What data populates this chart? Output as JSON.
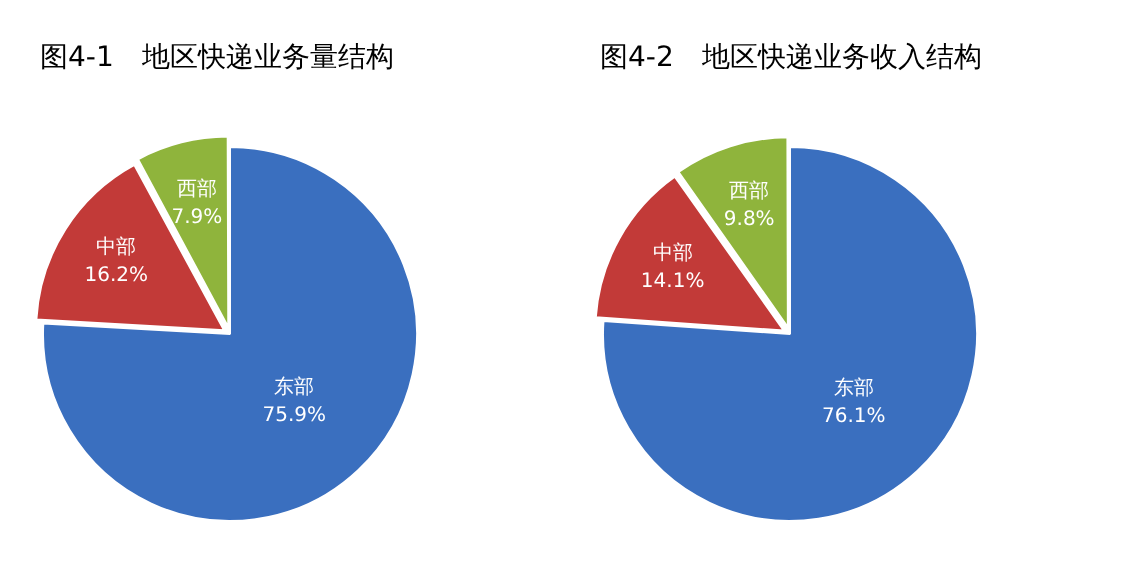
{
  "chart_data": [
    {
      "type": "pie",
      "title": "图4-1　地区快递业务量结构",
      "categories": [
        "东部",
        "中部",
        "西部"
      ],
      "values": [
        75.9,
        16.2,
        7.9
      ],
      "colors": [
        "#3a6fbf",
        "#c23a38",
        "#8fb43c"
      ],
      "value_labels": [
        "75.9%",
        "16.2%",
        "7.9%"
      ]
    },
    {
      "type": "pie",
      "title": "图4-2　地区快递业务收入结构",
      "categories": [
        "东部",
        "中部",
        "西部"
      ],
      "values": [
        76.1,
        14.1,
        9.8
      ],
      "colors": [
        "#3a6fbf",
        "#c23a38",
        "#8fb43c"
      ],
      "value_labels": [
        "76.1%",
        "14.1%",
        "9.8%"
      ]
    }
  ]
}
